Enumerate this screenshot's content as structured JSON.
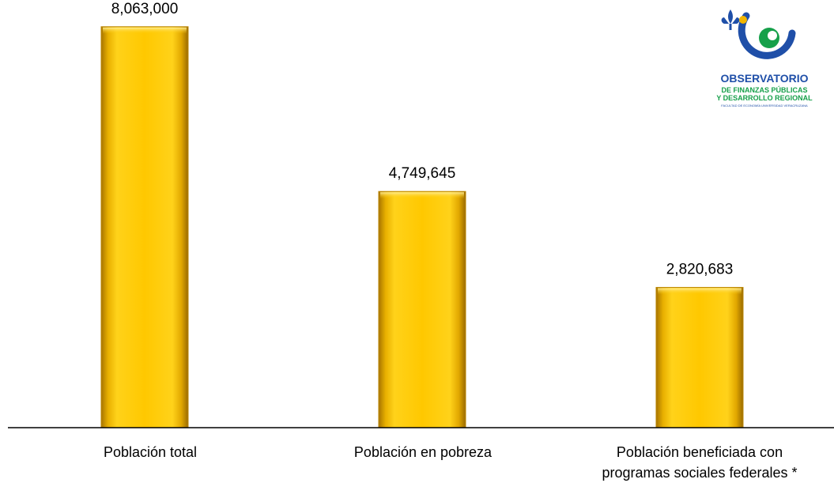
{
  "chart_data": {
    "type": "bar",
    "categories": [
      "Población total",
      "Población en pobreza",
      "Población beneficiada con programas sociales federales *"
    ],
    "category_lines": [
      [
        "Población total"
      ],
      [
        "Población en pobreza"
      ],
      [
        "Población beneficiada con",
        "programas sociales federales *"
      ]
    ],
    "values": [
      8063000,
      4749645,
      2820683
    ],
    "value_labels": [
      "8,063,000",
      "4,749,645",
      "2,820,683"
    ],
    "ylim": [
      0,
      8600000
    ],
    "bar_color": "#ffc600",
    "grid": false,
    "legend": "none"
  },
  "logo": {
    "title": "OBSERVATORIO",
    "line1": "DE FINANZAS PÚBLICAS",
    "line2": "Y DESARROLLO REGIONAL",
    "line3": "FACULTAD DE ECONOMÍA UNIVERSIDAD VERACRUZANA",
    "colors": {
      "blue": "#1f4fa8",
      "green": "#16a04a",
      "gold": "#f2b600"
    }
  }
}
